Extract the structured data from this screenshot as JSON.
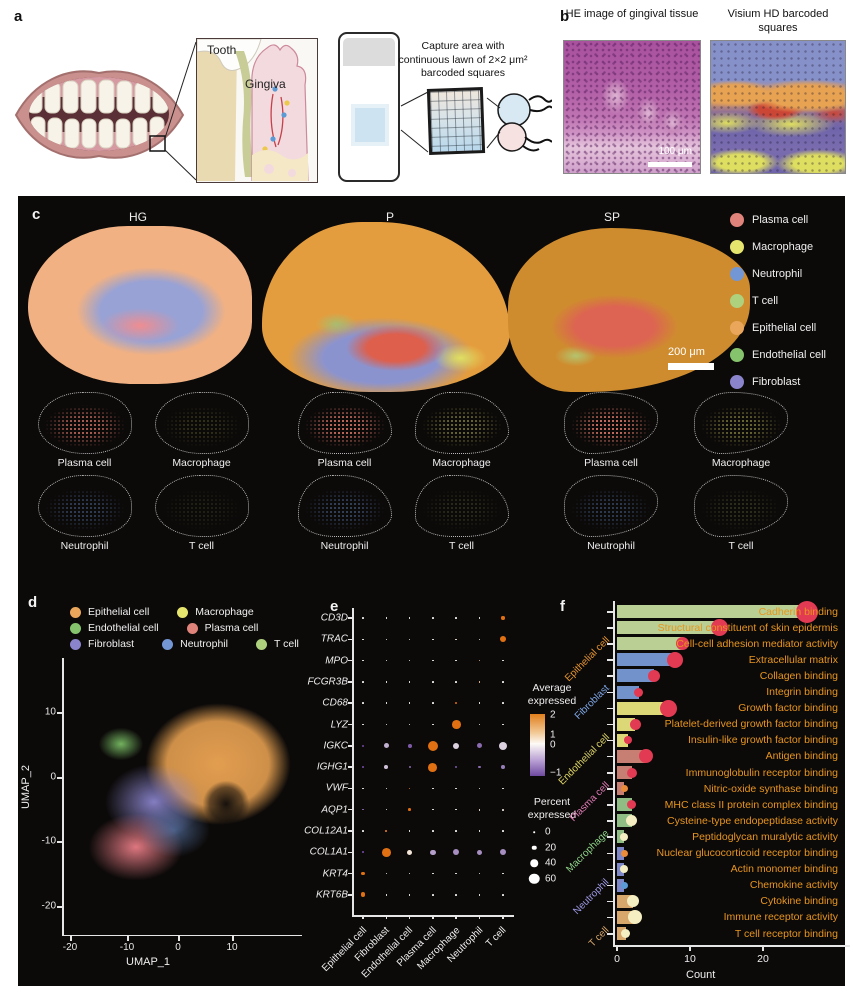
{
  "figure": {
    "panel_labels": {
      "a": "a",
      "b": "b",
      "c": "c",
      "d": "d",
      "e": "e",
      "f": "f"
    }
  },
  "panel_a": {
    "tooth_label": "Tooth",
    "gingiva_label": "Gingiva",
    "capture_text": "Capture area with continuous lawn of 2×2 μm² barcoded squares"
  },
  "panel_b": {
    "he_title": "HE image of gingival tissue",
    "visium_title": "Visium HD barcoded squares",
    "he_scale_bar": "100 μm"
  },
  "panel_c": {
    "sample_titles": [
      "HG",
      "P",
      "SP"
    ],
    "scale_bar": "200 μm",
    "legend": [
      {
        "label": "Plasma cell",
        "color": "#e0837a"
      },
      {
        "label": "Macrophage",
        "color": "#e6e56e"
      },
      {
        "label": "Neutrophil",
        "color": "#7396d5"
      },
      {
        "label": "T cell",
        "color": "#aed17e"
      },
      {
        "label": "Epithelial cell",
        "color": "#eaa75c"
      },
      {
        "label": "Endothelial cell",
        "color": "#85c46c"
      },
      {
        "label": "Fibroblast",
        "color": "#8a84cc"
      }
    ],
    "subpanel_labels": [
      "Plasma cell",
      "Macrophage",
      "Neutrophil",
      "T cell"
    ],
    "subpanel_colors": [
      "#f08272",
      "#e2e06a",
      "#6d95d8",
      "#cdd878"
    ],
    "subpanel_density": {
      "HG": [
        0.8,
        0.2,
        0.42,
        0.12
      ],
      "P": [
        0.9,
        0.5,
        0.45,
        0.18
      ],
      "SP": [
        0.95,
        0.5,
        0.4,
        0.2
      ]
    }
  },
  "chart_data": [
    {
      "type": "scatter",
      "name": "umap",
      "xlabel": "UMAP_1",
      "ylabel": "UMAP_2",
      "xticks": [
        -20,
        -10,
        0,
        10
      ],
      "yticks": [
        10,
        0,
        -10,
        -20
      ],
      "xlim": [
        -23,
        18
      ],
      "ylim": [
        -25,
        18
      ],
      "legend_rows": [
        [
          {
            "label": "Epithelial cell",
            "color": "#eaa75c"
          },
          {
            "label": "Macrophage",
            "color": "#e6e56e"
          }
        ],
        [
          {
            "label": "Endothelial cell",
            "color": "#85c46c"
          },
          {
            "label": "Plasma cell",
            "color": "#e0837a"
          }
        ],
        [
          {
            "label": "Fibroblast",
            "color": "#8a84cc"
          },
          {
            "label": "Neutrophil",
            "color": "#7396d5"
          },
          {
            "label": "T cell",
            "color": "#aed17e"
          }
        ]
      ],
      "clusters": [
        {
          "label": "Epithelial cell",
          "approx_center": [
            5,
            5
          ]
        },
        {
          "label": "Endothelial cell",
          "approx_center": [
            -13,
            3
          ]
        },
        {
          "label": "Fibroblast",
          "approx_center": [
            -8,
            -2
          ]
        },
        {
          "label": "Plasma cell",
          "approx_center": [
            -11,
            -9
          ]
        },
        {
          "label": "Neutrophil",
          "approx_center": [
            -5,
            -6
          ]
        }
      ]
    },
    {
      "type": "heatmap",
      "name": "marker-dotplot",
      "genes": [
        "CD3D",
        "TRAC",
        "MPO",
        "FCGR3B",
        "CD68",
        "LYZ",
        "IGKC",
        "IGHG1",
        "VWF",
        "AQP1",
        "COL12A1",
        "COL1A1",
        "KRT4",
        "KRT6B"
      ],
      "cell_types": [
        "Epithelial cell",
        "Fibroblast",
        "Endothelial cell",
        "Plasma cell",
        "Macrophage",
        "Neutrophil",
        "T cell"
      ],
      "percent_expressed": [
        [
          4,
          4,
          4,
          4,
          4,
          4,
          18
        ],
        [
          4,
          4,
          4,
          4,
          6,
          4,
          30
        ],
        [
          4,
          4,
          4,
          4,
          4,
          6,
          4
        ],
        [
          4,
          4,
          4,
          4,
          4,
          6,
          4
        ],
        [
          7,
          4,
          4,
          4,
          13,
          6,
          4
        ],
        [
          6,
          6,
          6,
          8,
          45,
          7,
          7
        ],
        [
          13,
          26,
          20,
          52,
          32,
          26,
          42
        ],
        [
          9,
          20,
          11,
          46,
          13,
          11,
          19
        ],
        [
          4,
          4,
          9,
          4,
          4,
          4,
          4
        ],
        [
          7,
          6,
          15,
          4,
          7,
          9,
          9
        ],
        [
          4,
          9,
          4,
          4,
          6,
          6,
          6
        ],
        [
          9,
          46,
          29,
          29,
          31,
          29,
          31
        ],
        [
          16,
          4,
          4,
          4,
          4,
          6,
          4
        ],
        [
          26,
          7,
          4,
          4,
          4,
          6,
          6
        ]
      ],
      "average_expressed": [
        [
          0,
          0,
          0,
          0,
          0,
          0,
          2
        ],
        [
          0,
          0,
          0,
          0,
          0.2,
          0,
          2
        ],
        [
          0,
          0,
          0,
          0,
          0,
          0.8,
          0
        ],
        [
          0,
          0,
          0,
          0,
          0,
          0.8,
          0
        ],
        [
          0,
          0,
          0,
          0,
          2,
          0,
          0
        ],
        [
          0,
          0,
          0,
          0,
          2,
          0,
          0
        ],
        [
          -1,
          -0.4,
          -0.9,
          2,
          -0.2,
          -0.8,
          -0.2
        ],
        [
          -1,
          -0.3,
          -0.8,
          2,
          -0.9,
          -0.8,
          -0.7
        ],
        [
          0,
          0,
          1.8,
          0,
          0,
          0,
          0
        ],
        [
          -0.8,
          0,
          2,
          0,
          0,
          0.1,
          0.1
        ],
        [
          0,
          1.8,
          0,
          0,
          0,
          0,
          0
        ],
        [
          -1,
          2,
          0.2,
          -0.5,
          -0.6,
          -0.6,
          -0.6
        ],
        [
          2,
          0,
          0,
          0,
          0,
          0,
          0
        ],
        [
          2,
          0,
          0,
          0,
          0,
          0,
          0
        ]
      ],
      "colorbar": {
        "title": "Average expressed",
        "ticks": [
          "2",
          "1",
          "0",
          "−1"
        ]
      },
      "size_legend": {
        "title": "Percent expressed",
        "values": [
          "0",
          "20",
          "40",
          "60"
        ]
      }
    },
    {
      "type": "bar",
      "name": "go-terms",
      "xlabel": "Count",
      "xticks": [
        0,
        10,
        20
      ],
      "xlim": [
        0,
        27
      ],
      "groups": [
        {
          "name": "Epithelial cell",
          "bar_color": "#b9cf93",
          "label_color": "#e8962e"
        },
        {
          "name": "Fibroblast",
          "bar_color": "#7292cb",
          "label_color": "#7fa8e8"
        },
        {
          "name": "Endothelial cell",
          "bar_color": "#dcd878",
          "label_color": "#ddd465"
        },
        {
          "name": "Plasma cell",
          "bar_color": "#c87f73",
          "label_color": "#e07bb5"
        },
        {
          "name": "Macrophage",
          "bar_color": "#90bd84",
          "label_color": "#8ed488"
        },
        {
          "name": "Neutrophil",
          "bar_color": "#7e88c9",
          "label_color": "#9d9ae6"
        },
        {
          "name": "T cell",
          "bar_color": "#d7a76c",
          "label_color": "#d7a76c"
        }
      ],
      "bars": [
        {
          "term": "Cadherin binding",
          "count": 26,
          "group": 0,
          "dot_color": "#e23a52",
          "dot_size": 22
        },
        {
          "term": "Structural constituent of skin epidermis",
          "count": 14,
          "group": 0,
          "dot_color": "#e23a52",
          "dot_size": 17
        },
        {
          "term": "Cell-cell adhesion mediator activity",
          "count": 9,
          "group": 0,
          "dot_color": "#e23a52",
          "dot_size": 13
        },
        {
          "term": "Extracellular matrix",
          "count": 8,
          "group": 1,
          "dot_color": "#e23a52",
          "dot_size": 16
        },
        {
          "term": "Collagen binding",
          "count": 5,
          "group": 1,
          "dot_color": "#e23a52",
          "dot_size": 12
        },
        {
          "term": "Integrin binding",
          "count": 3,
          "group": 1,
          "dot_color": "#e23a52",
          "dot_size": 9
        },
        {
          "term": "Growth factor binding",
          "count": 7,
          "group": 2,
          "dot_color": "#e23a52",
          "dot_size": 17
        },
        {
          "term": "Platelet-derived growth factor binding",
          "count": 2.5,
          "group": 2,
          "dot_color": "#e23a52",
          "dot_size": 11
        },
        {
          "term": "Insulin-like growth factor binding",
          "count": 1.5,
          "group": 2,
          "dot_color": "#e23a52",
          "dot_size": 8
        },
        {
          "term": "Antigen binding",
          "count": 4,
          "group": 3,
          "dot_color": "#e23a52",
          "dot_size": 14
        },
        {
          "term": "Immunoglobulin receptor binding",
          "count": 2,
          "group": 3,
          "dot_color": "#e23a52",
          "dot_size": 10
        },
        {
          "term": "Nitric-oxide synthase binding",
          "count": 1,
          "group": 3,
          "dot_color": "#ea8c3a",
          "dot_size": 7
        },
        {
          "term": "MHC class II protein complex binding",
          "count": 2,
          "group": 4,
          "dot_color": "#e23a52",
          "dot_size": 9
        },
        {
          "term": "Cysteine-type endopeptidase activity",
          "count": 2,
          "group": 4,
          "dot_color": "#f5eec2",
          "dot_size": 11
        },
        {
          "term": "Peptidoglycan muralytic activity",
          "count": 1,
          "group": 4,
          "dot_color": "#f5eec2",
          "dot_size": 8
        },
        {
          "term": "Nuclear glucocorticoid receptor binding",
          "count": 1,
          "group": 5,
          "dot_color": "#ea8c3a",
          "dot_size": 7
        },
        {
          "term": "Actin monomer binding",
          "count": 1,
          "group": 5,
          "dot_color": "#f5eec2",
          "dot_size": 8
        },
        {
          "term": "Chemokine activity",
          "count": 1,
          "group": 5,
          "dot_color": "#5b9bd5",
          "dot_size": 7
        },
        {
          "term": "Cytokine binding",
          "count": 2.2,
          "group": 6,
          "dot_color": "#f5eec2",
          "dot_size": 12
        },
        {
          "term": "Immune receptor activity",
          "count": 2.4,
          "group": 6,
          "dot_color": "#f5eec2",
          "dot_size": 14
        },
        {
          "term": "T cell receptor binding",
          "count": 1.2,
          "group": 6,
          "dot_color": "#f5eec2",
          "dot_size": 9
        }
      ]
    }
  ]
}
